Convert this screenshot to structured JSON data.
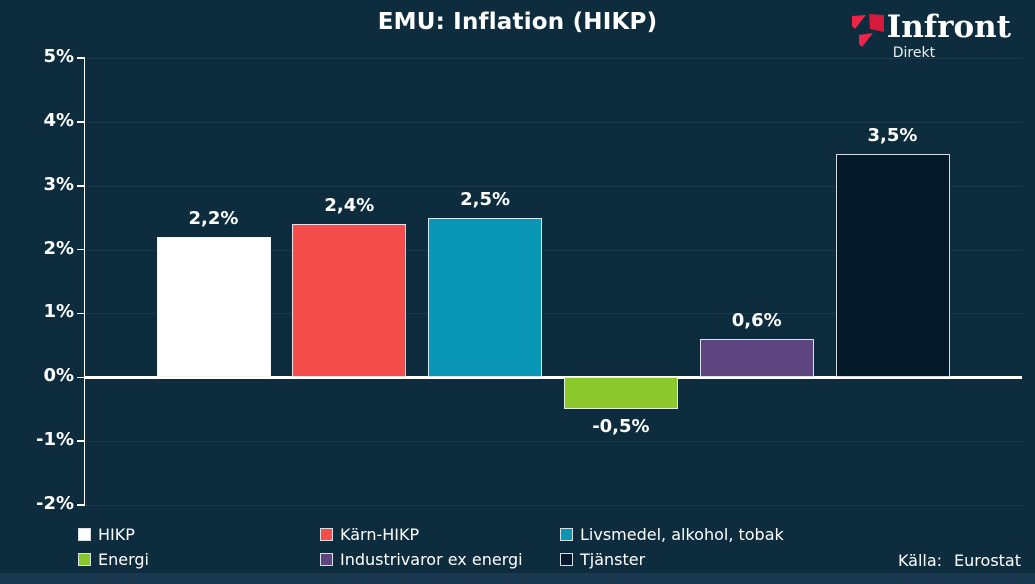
{
  "header": {
    "title": "EMU: Inflation (HIKP)",
    "logo": {
      "name": "Infront",
      "sub": "Direkt"
    }
  },
  "source": {
    "label": "Källa:",
    "value": "Eurostat"
  },
  "chart_data": {
    "type": "bar",
    "title": "EMU: Inflation (HIKP)",
    "categories": [
      "HIKP",
      "Kärn-HIKP",
      "Livsmedel, alkohol, tobak",
      "Energi",
      "Industrivaror ex energi",
      "Tjänster"
    ],
    "values": [
      2.2,
      2.4,
      2.5,
      -0.5,
      0.6,
      3.5
    ],
    "value_labels": [
      "2,2%",
      "2,4%",
      "2,5%",
      "-0,5%",
      "0,6%",
      "3,5%"
    ],
    "bar_colors": [
      "#ffffff",
      "#f54c4c",
      "#0997b5",
      "#8ac82b",
      "#5e4580",
      "#04192a"
    ],
    "y_ticks": [
      5,
      4,
      3,
      2,
      1,
      0,
      -1,
      -2
    ],
    "y_tick_labels": [
      "5%",
      "4%",
      "3%",
      "2%",
      "1%",
      "0%",
      "-1%",
      "-2%"
    ],
    "ylim": [
      -2,
      5
    ],
    "grid": true,
    "legend_position": "bottom",
    "legend": [
      "HIKP",
      "Kärn-HIKP",
      "Livsmedel, alkohol, tobak",
      "Energi",
      "Industrivaror ex energi",
      "Tjänster"
    ],
    "source": "Källa: Eurostat",
    "xlabel": "",
    "ylabel": ""
  },
  "colors": {
    "background": "#0d2d3e",
    "zero_line": "#ffffff",
    "logo_red": "#ef2449",
    "logo_red_dark": "#d61a3c",
    "bottom_strip": "#1a3850"
  }
}
